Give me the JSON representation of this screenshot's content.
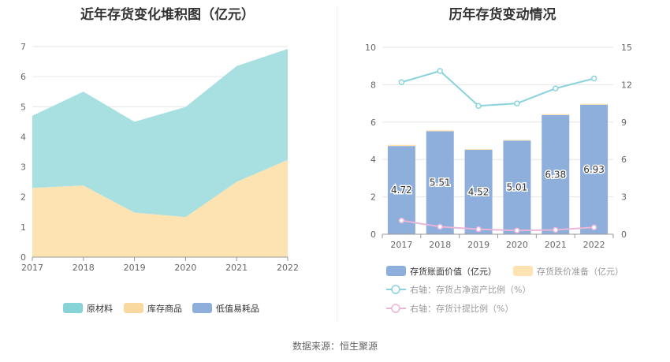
{
  "left_chart": {
    "title": "近年存货变化堆积图（亿元）",
    "chart_data": {
      "type": "area",
      "stacked": true,
      "x": [
        "2017",
        "2018",
        "2019",
        "2020",
        "2021",
        "2022"
      ],
      "ylim": [
        0,
        7
      ],
      "yticks": [
        "0",
        "1",
        "2",
        "3",
        "4",
        "5",
        "6",
        "7"
      ],
      "grid": true,
      "legend_position": "bottom",
      "series": [
        {
          "name": "库存商品",
          "color": "#fde3b2",
          "values": [
            2.3,
            2.38,
            1.48,
            1.33,
            2.5,
            3.23
          ]
        },
        {
          "name": "原材料",
          "color": "#a8e0e2",
          "values": [
            2.4,
            3.12,
            3.02,
            3.66,
            3.85,
            3.69
          ]
        },
        {
          "name": "低值易耗品",
          "color": "#8eaedc",
          "values": [
            0,
            0,
            0,
            0,
            0,
            0
          ]
        }
      ],
      "legend": [
        {
          "name": "原材料",
          "color": "#86d4d6"
        },
        {
          "name": "库存商品",
          "color": "#fad9a0"
        },
        {
          "name": "低值易耗品",
          "color": "#8eaedc"
        }
      ]
    }
  },
  "right_chart": {
    "title": "历年存货变动情况",
    "chart_data": {
      "type": "bar",
      "categories": [
        "2017",
        "2018",
        "2019",
        "2020",
        "2021",
        "2022"
      ],
      "ylim": [
        0,
        10
      ],
      "yticks": [
        "0",
        "2",
        "4",
        "6",
        "8",
        "10"
      ],
      "y2lim": [
        0,
        15
      ],
      "y2ticks": [
        "0",
        "3",
        "6",
        "9",
        "12",
        "15"
      ],
      "series": [
        {
          "name": "存货账面价值（亿元）",
          "type": "bar",
          "axis": "left",
          "color": "#8eaedc",
          "values": [
            4.72,
            5.51,
            4.52,
            5.01,
            6.38,
            6.93
          ],
          "labels": [
            "4.72",
            "5.51",
            "4.52",
            "5.01",
            "6.38",
            "6.93"
          ]
        },
        {
          "name": "存货跌价准备（亿元）",
          "type": "bar",
          "axis": "left",
          "color": "#fde3b2",
          "values": [
            0.06,
            0.05,
            0.04,
            0.04,
            0.05,
            0.05
          ]
        },
        {
          "name": "右轴：存货占净资产比例（%）",
          "type": "line",
          "axis": "right",
          "color": "#8ad3dc",
          "values": [
            12.2,
            13.1,
            10.3,
            10.5,
            11.7,
            12.5
          ]
        },
        {
          "name": "右轴：存货计提比例（%）",
          "type": "line",
          "axis": "right",
          "color": "#e9b6d8",
          "values": [
            1.1,
            0.6,
            0.4,
            0.3,
            0.35,
            0.55
          ]
        }
      ]
    }
  },
  "source": "数据来源：恒生聚源"
}
